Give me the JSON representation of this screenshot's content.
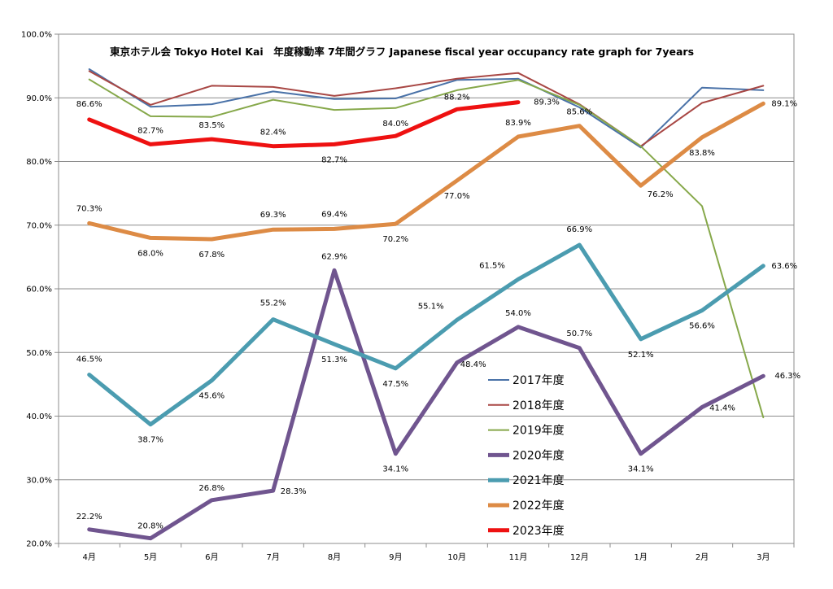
{
  "chart_data": {
    "type": "line",
    "title": "東京ホテル会 Tokyo Hotel Kai　年度稼動率 7年間グラフ Japanese fiscal year occupancy rate graph for 7years",
    "xlabel": "",
    "ylabel": "",
    "categories": [
      "4月",
      "5月",
      "6月",
      "7月",
      "8月",
      "9月",
      "10月",
      "11月",
      "12月",
      "1月",
      "2月",
      "3月"
    ],
    "ylim": [
      20,
      100
    ],
    "yticks": [
      "20.0%",
      "30.0%",
      "40.0%",
      "50.0%",
      "60.0%",
      "70.0%",
      "80.0%",
      "90.0%",
      "100.0%"
    ],
    "grid": true,
    "legend": "center-right",
    "series": [
      {
        "name": "2017年度",
        "color": "#4a72a8",
        "width": 2,
        "values": [
          94.5,
          88.6,
          89.0,
          91.0,
          89.8,
          89.9,
          92.8,
          93.0,
          88.5,
          82.2,
          91.6,
          91.2
        ],
        "labels": null
      },
      {
        "name": "2018年度",
        "color": "#a84744",
        "width": 2,
        "values": [
          94.2,
          88.9,
          91.9,
          91.7,
          90.3,
          91.5,
          93.0,
          93.9,
          89.0,
          82.4,
          89.2,
          91.9
        ],
        "labels": null
      },
      {
        "name": "2019年度",
        "color": "#86a84a",
        "width": 2,
        "values": [
          92.9,
          87.1,
          87.0,
          89.7,
          88.1,
          88.4,
          91.2,
          92.8,
          88.9,
          82.4,
          73.0,
          39.8
        ],
        "labels": null
      },
      {
        "name": "2020年度",
        "color": "#70558f",
        "width": 5,
        "values": [
          22.2,
          20.8,
          26.8,
          28.3,
          62.9,
          34.1,
          48.4,
          54.0,
          50.7,
          34.1,
          41.4,
          46.3
        ],
        "labels": [
          "22.2%",
          "20.8%",
          "26.8%",
          "28.3%",
          "62.9%",
          "34.1%",
          "48.4%",
          "54.0%",
          "50.7%",
          "34.1%",
          "41.4%",
          "46.3%"
        ]
      },
      {
        "name": "2021年度",
        "color": "#4b9cb0",
        "width": 5,
        "values": [
          46.5,
          38.7,
          45.6,
          55.2,
          51.3,
          47.5,
          55.1,
          61.5,
          66.9,
          52.1,
          56.6,
          63.6
        ],
        "labels": [
          "46.5%",
          "38.7%",
          "45.6%",
          "55.2%",
          "51.3%",
          "47.5%",
          "55.1%",
          "61.5%",
          "66.9%",
          "52.1%",
          "56.6%",
          "63.6%"
        ]
      },
      {
        "name": "2022年度",
        "color": "#dd8b45",
        "width": 5,
        "values": [
          70.3,
          68.0,
          67.8,
          69.3,
          69.4,
          70.2,
          77.0,
          83.9,
          85.6,
          76.2,
          83.8,
          89.1
        ],
        "labels": [
          "70.3%",
          "68.0%",
          "67.8%",
          "69.3%",
          "69.4%",
          "70.2%",
          "77.0%",
          "83.9%",
          "85.6%",
          "76.2%",
          "83.8%",
          "89.1%"
        ]
      },
      {
        "name": "2023年度",
        "color": "#ee1111",
        "width": 5,
        "values": [
          86.6,
          82.7,
          83.5,
          82.4,
          82.7,
          84.0,
          88.2,
          89.3,
          null,
          null,
          null,
          null
        ],
        "labels": [
          "86.6%",
          "82.7%",
          "83.5%",
          "82.4%",
          "82.7%",
          "84.0%",
          "88.2%",
          "89.3%",
          null,
          null,
          null,
          null
        ]
      }
    ]
  }
}
